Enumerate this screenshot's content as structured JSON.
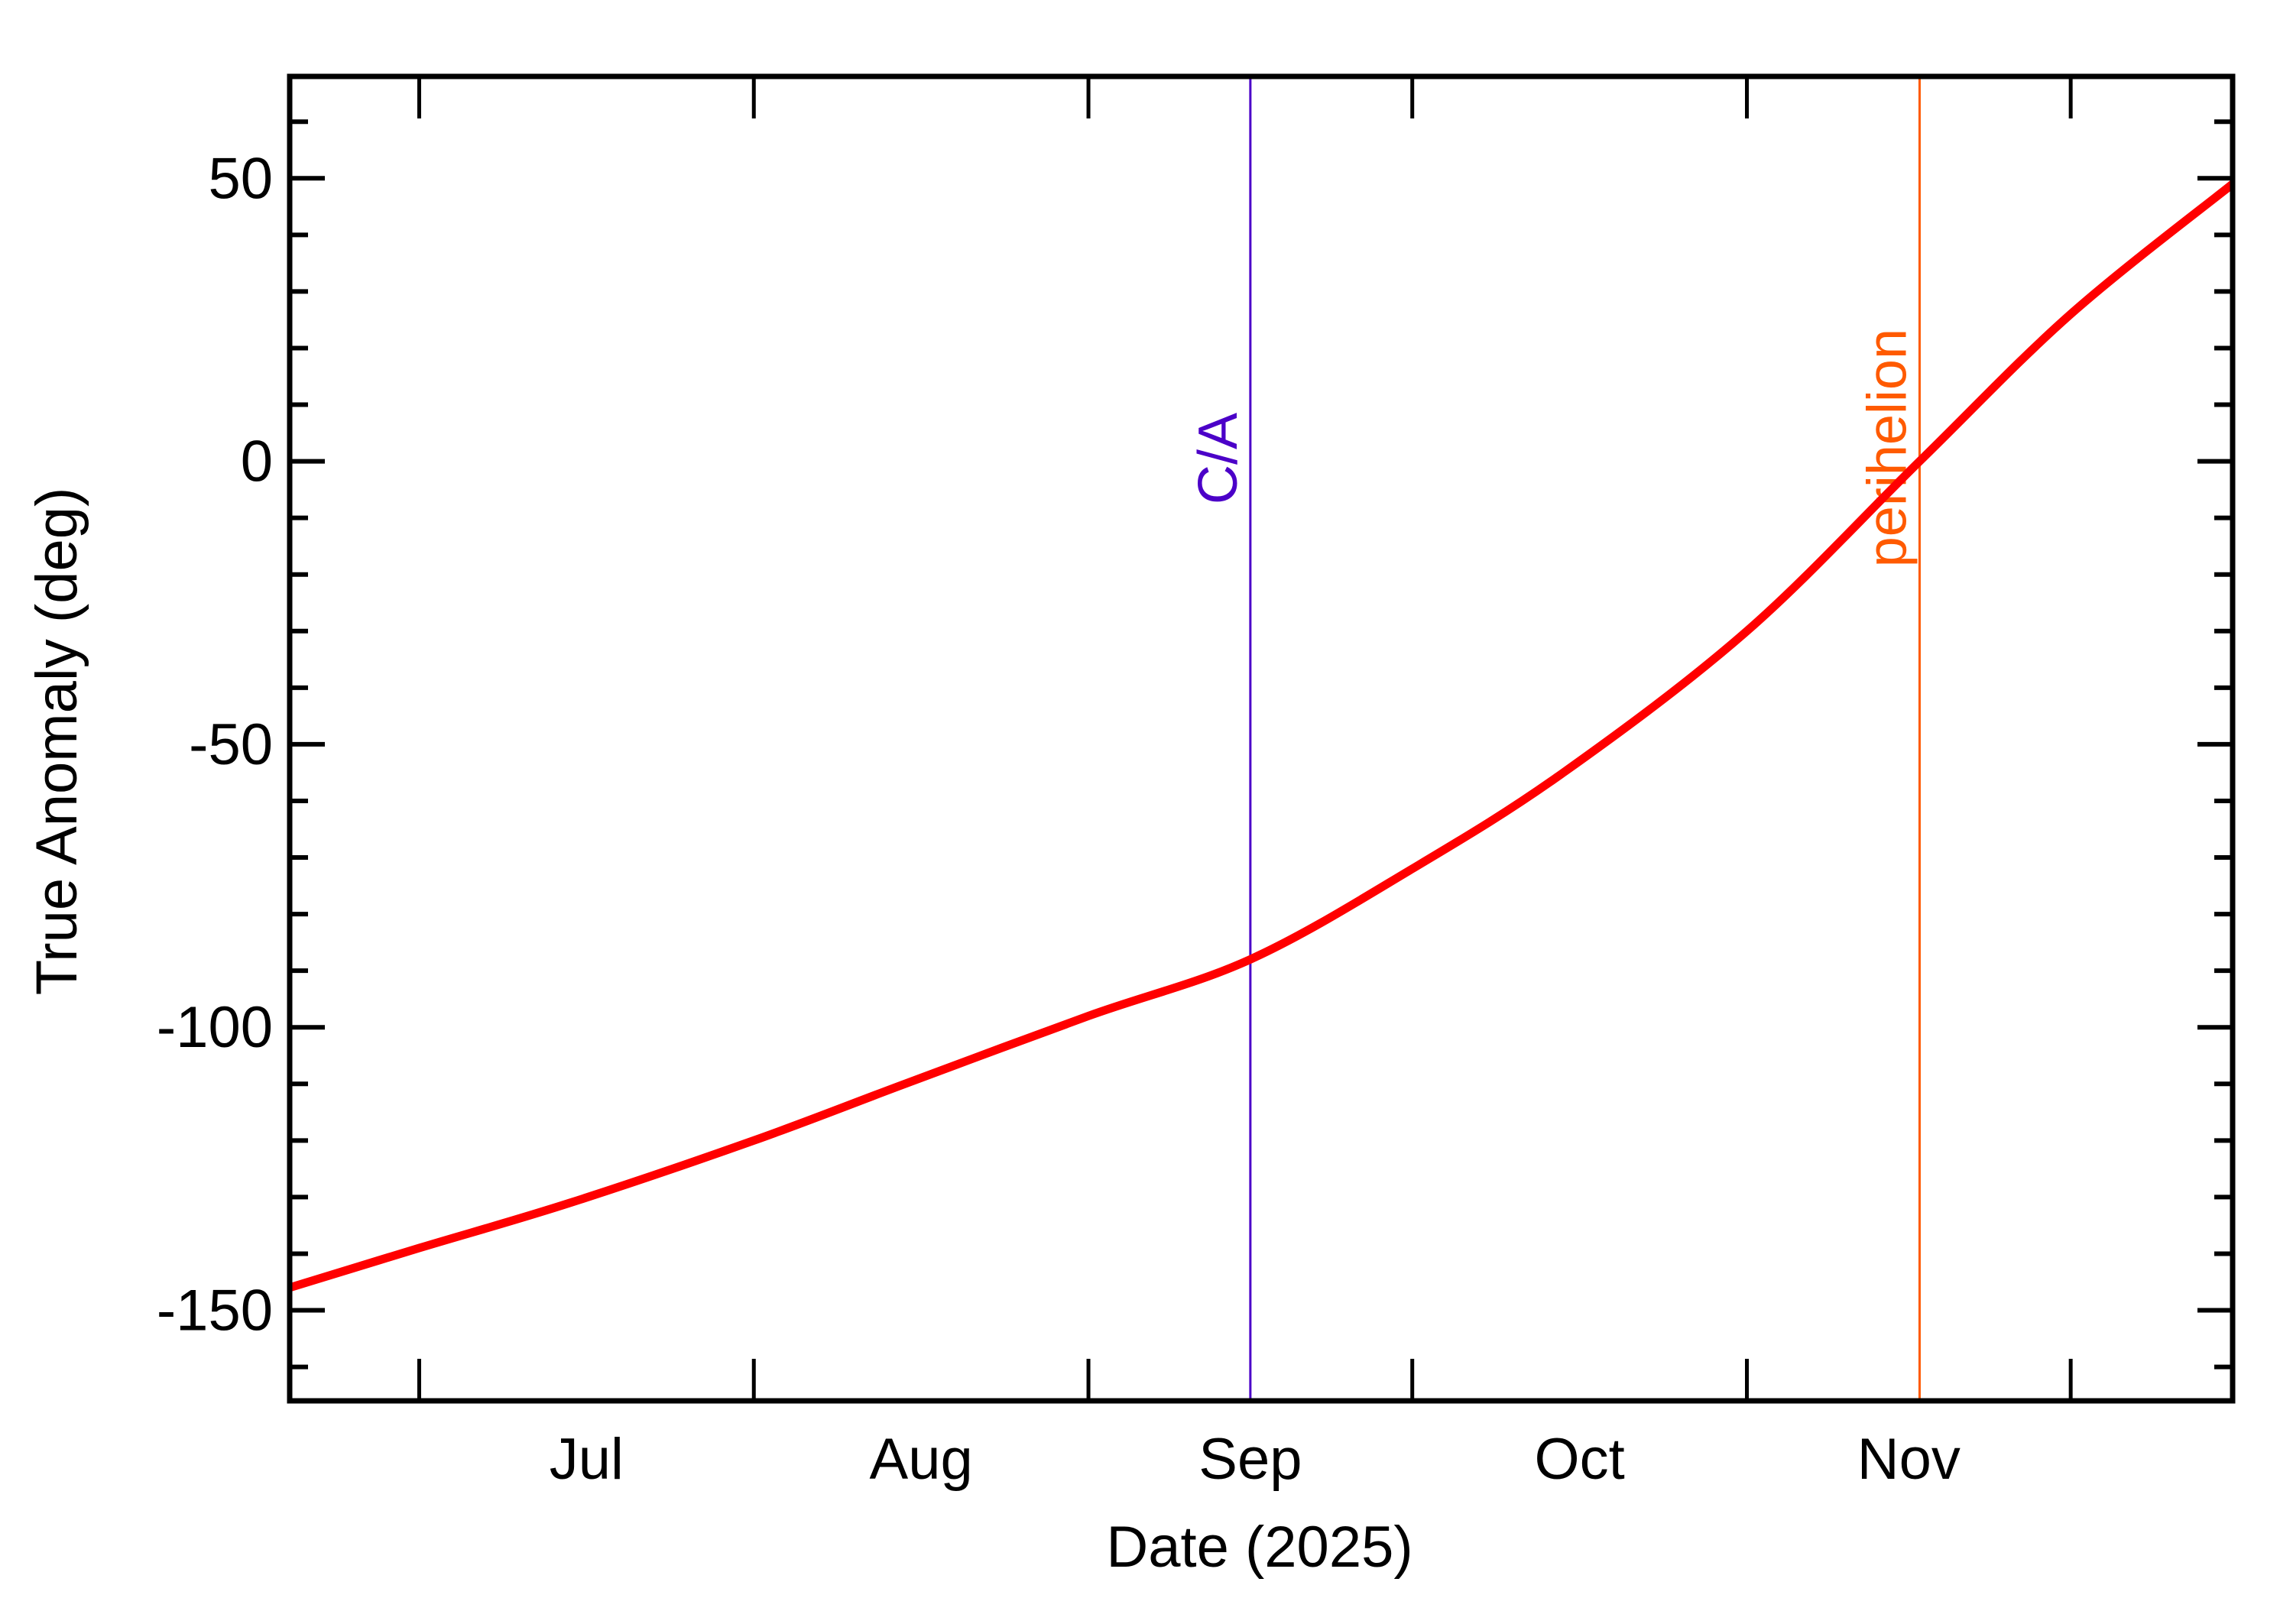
{
  "chart_data": {
    "type": "line",
    "title": "",
    "xlabel": "Date (2025)",
    "ylabel": "True Anomaly (deg)",
    "x_tick_labels": [
      "Jul",
      "Aug",
      "Sep",
      "Oct",
      "Nov"
    ],
    "y_tick_labels": [
      "50",
      "0",
      "-50",
      "-100",
      "-150"
    ],
    "y_ticks": [
      50,
      0,
      -50,
      -100,
      -150
    ],
    "ylim": [
      -166,
      68
    ],
    "xlim": [
      "2025-06-19",
      "2025-12-16"
    ],
    "grid": false,
    "series": [
      {
        "name": "True Anomaly",
        "color": "#ff0000",
        "x": [
          "2025-06-19",
          "2025-07-01",
          "2025-07-15",
          "2025-08-01",
          "2025-08-15",
          "2025-09-01",
          "2025-09-16",
          "2025-10-01",
          "2025-10-15",
          "2025-11-01",
          "2025-11-17",
          "2025-12-01",
          "2025-12-16"
        ],
        "values": [
          -146,
          -139,
          -131,
          -120,
          -110,
          -98,
          -88,
          -72,
          -55,
          -30,
          0,
          26,
          49
        ]
      }
    ],
    "annotations": [
      {
        "label": "C/A",
        "date": "2025-09-16",
        "color": "#4b00c8"
      },
      {
        "label": "perihelion",
        "date": "2025-11-17",
        "color": "#ff5a00"
      }
    ]
  }
}
